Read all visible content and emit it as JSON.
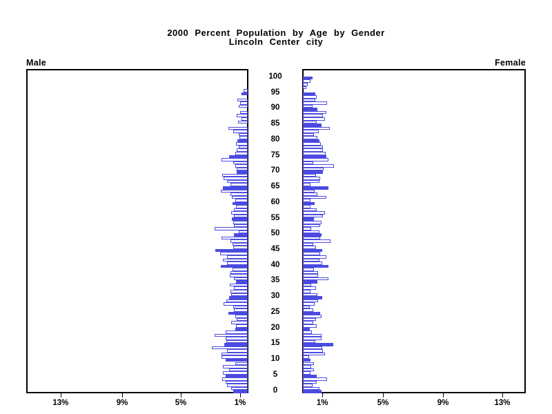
{
  "title": {
    "line1": "2000 Percent Population by Age by Gender",
    "line2": "Lincoln Center city"
  },
  "panels": {
    "male_label": "Male",
    "female_label": "Female"
  },
  "colors": {
    "bar_blue": "#4B4BE1",
    "frame": "#000000",
    "background": "#ffffff",
    "text": "#000000"
  },
  "chart_data": {
    "type": "bar",
    "subtype": "population_pyramid_horizontal",
    "title": "2000 Percent Population by Age by Gender",
    "subtitle": "Lincoln Center city",
    "unit": "percent of population",
    "age_axis": {
      "min": 0,
      "max": 100,
      "label_step": 5,
      "tick_labels": [
        "0",
        "5",
        "10",
        "15",
        "20",
        "25",
        "30",
        "35",
        "40",
        "45",
        "50",
        "55",
        "60",
        "65",
        "70",
        "75",
        "80",
        "85",
        "90",
        "95",
        "100"
      ]
    },
    "percent_axis": {
      "male_tick_labels": [
        "13%",
        "9%",
        "5%",
        "1%"
      ],
      "male_tick_values": [
        13,
        9,
        5,
        1
      ],
      "female_tick_labels": [
        "1%",
        "5%",
        "9%",
        "13%"
      ],
      "female_tick_values": [
        1,
        5,
        9,
        13
      ]
    },
    "legend_note": "bars at ages divisible by 5 are solid blue; other single-year ages are white with blue outline",
    "series": [
      {
        "name": "Male",
        "ages": "0-100 by 1",
        "values": [
          0.95,
          1.1,
          1.38,
          1.49,
          1.72,
          1.46,
          1.64,
          1.23,
          1.64,
          0.84,
          1.46,
          1.77,
          1.77,
          1.38,
          2.38,
          1.55,
          1.45,
          1.46,
          2.22,
          1.49,
          0.84,
          0.77,
          1.1,
          0.72,
          0.84,
          1.28,
          0.92,
          0.95,
          1.6,
          1.45,
          1.26,
          1.1,
          1.15,
          0.92,
          1.18,
          0.77,
          0.92,
          1.18,
          1.15,
          1.0,
          1.8,
          1.38,
          1.64,
          1.38,
          1.84,
          2.15,
          0.95,
          1.0,
          1.15,
          1.77,
          0.92,
          0.6,
          2.23,
          0.92,
          0.95,
          1.08,
          0.92,
          1.1,
          0.92,
          0.77,
          1.0,
          0.84,
          1.08,
          1.15,
          1.8,
          1.64,
          1.15,
          1.38,
          1.6,
          1.7,
          0.75,
          0.72,
          0.81,
          0.95,
          1.77,
          1.26,
          0.85,
          0.72,
          0.58,
          0.77,
          0.69,
          0.54,
          0.6,
          0.95,
          1.27,
          0.0,
          0.66,
          0.4,
          0.72,
          0.51,
          0.0,
          0.61,
          0.51,
          0.69,
          0.0,
          0.41,
          0.28,
          0.0,
          0.0,
          0.0,
          0.0
        ]
      },
      {
        "name": "Female",
        "ages": "0-100 by 1",
        "values": [
          1.25,
          1.09,
          0.63,
          0.94,
          1.63,
          0.94,
          0.52,
          0.74,
          0.55,
          0.74,
          0.52,
          0.4,
          1.47,
          1.32,
          1.29,
          2.01,
          0.83,
          1.24,
          1.24,
          0.58,
          0.48,
          0.94,
          0.7,
          0.86,
          1.24,
          1.16,
          0.67,
          0.48,
          0.78,
          1.01,
          1.29,
          0.98,
          0.52,
          0.86,
          0.55,
          0.98,
          1.7,
          1.01,
          1.01,
          0.74,
          1.7,
          1.29,
          1.09,
          1.55,
          1.17,
          1.29,
          0.86,
          0.7,
          1.86,
          1.14,
          1.24,
          1.1,
          0.55,
          1.14,
          1.24,
          0.74,
          1.32,
          1.47,
          0.94,
          0.52,
          0.78,
          0.52,
          1.55,
          0.98,
          0.78,
          1.7,
          0.52,
          1.09,
          1.17,
          0.86,
          1.35,
          1.4,
          2.05,
          0.7,
          1.7,
          1.55,
          1.5,
          1.35,
          1.35,
          1.2,
          1.09,
          0.95,
          0.74,
          1.05,
          1.78,
          1.24,
          0.94,
          1.45,
          1.32,
          1.55,
          0.98,
          0.63,
          1.6,
          0.83,
          0.94,
          0.83,
          0.0,
          0.25,
          0.32,
          0.52,
          0.63
        ]
      }
    ],
    "layout_hints": {
      "male_panel_side": "left, bars grow leftward from center",
      "female_panel_side": "right, bars grow rightward from center",
      "age_labels_position": "center column",
      "grid": "off"
    }
  }
}
